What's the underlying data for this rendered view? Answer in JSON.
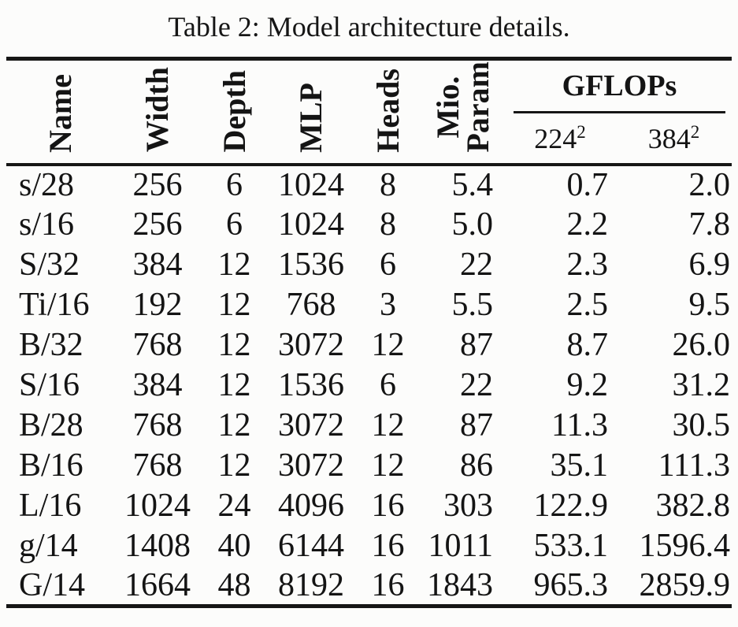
{
  "title": "Table 2: Model architecture details.",
  "colors": {
    "background": "#fcfcfb",
    "text": "#141414",
    "rule": "#161616"
  },
  "table": {
    "rotated_headers": [
      "Name",
      "Width",
      "Depth",
      "MLP",
      "Heads"
    ],
    "rotated_header_two_line": {
      "line1": "Mio.",
      "line2": "Param"
    },
    "group_header": "GFLOPs",
    "sub_headers": [
      {
        "base": "224",
        "sup": "2"
      },
      {
        "base": "384",
        "sup": "2"
      }
    ],
    "columns": [
      "Name",
      "Width",
      "Depth",
      "MLP",
      "Heads",
      "Mio. Param",
      "GFLOPs 224²",
      "GFLOPs 384²"
    ],
    "rows": [
      [
        "s/28",
        "256",
        "6",
        "1024",
        "8",
        "5.4",
        "0.7",
        "2.0"
      ],
      [
        "s/16",
        "256",
        "6",
        "1024",
        "8",
        "5.0",
        "2.2",
        "7.8"
      ],
      [
        "S/32",
        "384",
        "12",
        "1536",
        "6",
        "22",
        "2.3",
        "6.9"
      ],
      [
        "Ti/16",
        "192",
        "12",
        "768",
        "3",
        "5.5",
        "2.5",
        "9.5"
      ],
      [
        "B/32",
        "768",
        "12",
        "3072",
        "12",
        "87",
        "8.7",
        "26.0"
      ],
      [
        "S/16",
        "384",
        "12",
        "1536",
        "6",
        "22",
        "9.2",
        "31.2"
      ],
      [
        "B/28",
        "768",
        "12",
        "3072",
        "12",
        "87",
        "11.3",
        "30.5"
      ],
      [
        "B/16",
        "768",
        "12",
        "3072",
        "12",
        "86",
        "35.1",
        "111.3"
      ],
      [
        "L/16",
        "1024",
        "24",
        "4096",
        "16",
        "303",
        "122.9",
        "382.8"
      ],
      [
        "g/14",
        "1408",
        "40",
        "6144",
        "16",
        "1011",
        "533.1",
        "1596.4"
      ],
      [
        "G/14",
        "1664",
        "48",
        "8192",
        "16",
        "1843",
        "965.3",
        "2859.9"
      ]
    ]
  }
}
